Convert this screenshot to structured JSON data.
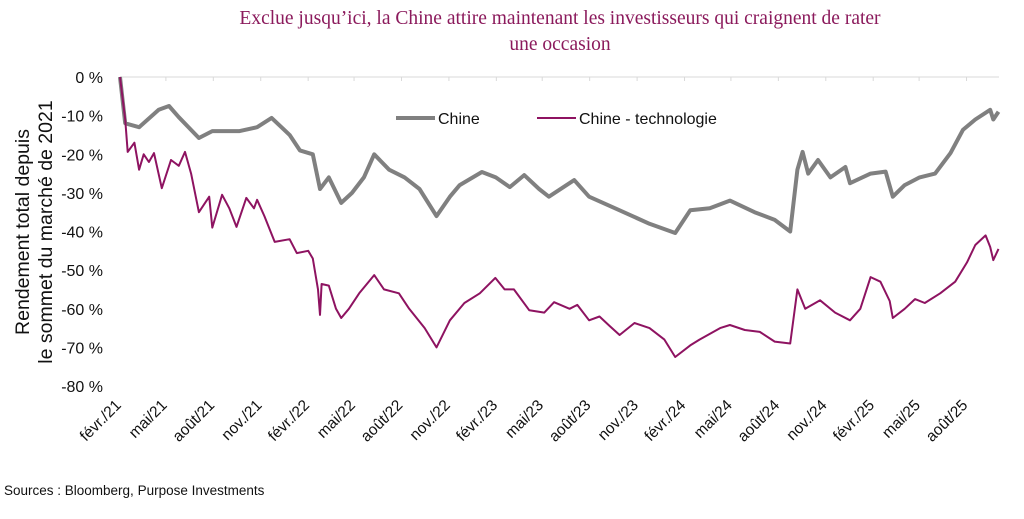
{
  "title_line1": "Exclue jusqu’ici, la Chine attire maintenant les investisseurs qui craignent de rater",
  "title_line2": "une occasion",
  "sources": "Sources : Bloomberg, Purpose Investments",
  "chart_data": {
    "type": "line",
    "title": "Exclue jusqu’ici, la Chine attire maintenant les investisseurs qui craignent de rater une occasion",
    "xlabel": "",
    "ylabel": "Rendement total depuis le sommet du marché de 2021",
    "ylabel_lines": [
      "Rendement total depuis",
      "le sommet du marché de 2021"
    ],
    "ylim": [
      -80,
      0
    ],
    "xlim": [
      "2021-02-01",
      "2025-10-03"
    ],
    "grid": false,
    "legend_position": "top-center",
    "y_ticks": [
      0,
      -10,
      -20,
      -30,
      -40,
      -50,
      -60,
      -70,
      -80
    ],
    "y_tick_labels": [
      "0 %",
      "-10 %",
      "-20 %",
      "-30 %",
      "-40 %",
      "-50 %",
      "-60 %",
      "-70 %",
      "-80 %"
    ],
    "x_ticks": [
      "2021-02-01",
      "2021-05-01",
      "2021-08-01",
      "2021-11-01",
      "2022-02-01",
      "2022-05-01",
      "2022-08-01",
      "2022-11-01",
      "2023-02-01",
      "2023-05-01",
      "2023-08-01",
      "2023-11-01",
      "2024-02-01",
      "2024-05-01",
      "2024-08-01",
      "2024-11-01",
      "2025-02-01",
      "2025-05-01",
      "2025-08-01"
    ],
    "x_tick_labels": [
      "févr./21",
      "mai/21",
      "août/21",
      "nov./21",
      "févr./22",
      "mai/22",
      "août/22",
      "nov./22",
      "févr./23",
      "mai/23",
      "août/23",
      "nov./23",
      "févr./24",
      "mai/24",
      "août/24",
      "nov./24",
      "févr./25",
      "mai/25",
      "août/25"
    ],
    "series": [
      {
        "name": "Chine",
        "color": "#808080",
        "points": [
          [
            "2021-02-01",
            0
          ],
          [
            "2021-02-11",
            -12
          ],
          [
            "2021-03-10",
            -13
          ],
          [
            "2021-04-17",
            -8.5
          ],
          [
            "2021-05-07",
            -7.5
          ],
          [
            "2021-05-26",
            -10.4
          ],
          [
            "2021-07-04",
            -15.8
          ],
          [
            "2021-07-30",
            -14
          ],
          [
            "2021-09-21",
            -14
          ],
          [
            "2021-10-25",
            -13
          ],
          [
            "2021-11-22",
            -10.6
          ],
          [
            "2021-12-27",
            -15
          ],
          [
            "2022-01-16",
            -19
          ],
          [
            "2022-02-10",
            -20
          ],
          [
            "2022-02-24",
            -29
          ],
          [
            "2022-03-13",
            -26
          ],
          [
            "2022-04-06",
            -32.6
          ],
          [
            "2022-04-27",
            -30
          ],
          [
            "2022-05-20",
            -26
          ],
          [
            "2022-06-09",
            -20
          ],
          [
            "2022-07-08",
            -24
          ],
          [
            "2022-08-07",
            -26
          ],
          [
            "2022-09-05",
            -29
          ],
          [
            "2022-10-08",
            -36
          ],
          [
            "2022-11-03",
            -31
          ],
          [
            "2022-11-22",
            -28
          ],
          [
            "2023-01-04",
            -24.6
          ],
          [
            "2023-01-31",
            -26
          ],
          [
            "2023-02-27",
            -28.5
          ],
          [
            "2023-03-27",
            -25.4
          ],
          [
            "2023-04-25",
            -29
          ],
          [
            "2023-05-14",
            -31
          ],
          [
            "2023-07-02",
            -26.7
          ],
          [
            "2023-07-31",
            -31
          ],
          [
            "2023-09-28",
            -34.5
          ],
          [
            "2023-11-25",
            -38
          ],
          [
            "2024-01-14",
            -40.4
          ],
          [
            "2024-02-12",
            -34.5
          ],
          [
            "2024-03-21",
            -34
          ],
          [
            "2024-04-29",
            -32
          ],
          [
            "2024-06-16",
            -35
          ],
          [
            "2024-07-25",
            -37
          ],
          [
            "2024-08-24",
            -40
          ],
          [
            "2024-09-07",
            -24
          ],
          [
            "2024-09-17",
            -19.4
          ],
          [
            "2024-09-28",
            -25
          ],
          [
            "2024-10-17",
            -21.5
          ],
          [
            "2024-11-10",
            -26
          ],
          [
            "2024-12-09",
            -23.3
          ],
          [
            "2024-12-18",
            -27.5
          ],
          [
            "2025-01-27",
            -25
          ],
          [
            "2025-02-25",
            -24.5
          ],
          [
            "2025-03-11",
            -31
          ],
          [
            "2025-04-03",
            -28
          ],
          [
            "2025-05-02",
            -26
          ],
          [
            "2025-06-01",
            -25
          ],
          [
            "2025-07-01",
            -19.7
          ],
          [
            "2025-07-25",
            -13.7
          ],
          [
            "2025-08-18",
            -11
          ],
          [
            "2025-09-16",
            -8.5
          ],
          [
            "2025-09-22",
            -11
          ],
          [
            "2025-10-02",
            -9
          ]
        ]
      },
      {
        "name": "Chine - technologie",
        "color": "#8E1361",
        "points": [
          [
            "2021-02-01",
            0
          ],
          [
            "2021-02-11",
            -11
          ],
          [
            "2021-02-16",
            -19.4
          ],
          [
            "2021-03-01",
            -17
          ],
          [
            "2021-03-10",
            -24
          ],
          [
            "2021-03-19",
            -20
          ],
          [
            "2021-03-29",
            -22
          ],
          [
            "2021-04-08",
            -19.7
          ],
          [
            "2021-04-23",
            -28.8
          ],
          [
            "2021-05-11",
            -21.5
          ],
          [
            "2021-05-26",
            -23
          ],
          [
            "2021-06-07",
            -19.4
          ],
          [
            "2021-06-19",
            -25
          ],
          [
            "2021-07-04",
            -35
          ],
          [
            "2021-07-24",
            -31
          ],
          [
            "2021-07-30",
            -39
          ],
          [
            "2021-08-18",
            -30.5
          ],
          [
            "2021-09-01",
            -34
          ],
          [
            "2021-09-15",
            -38.8
          ],
          [
            "2021-10-04",
            -31.3
          ],
          [
            "2021-10-19",
            -34
          ],
          [
            "2021-10-25",
            -31.8
          ],
          [
            "2021-11-08",
            -36
          ],
          [
            "2021-11-28",
            -42.7
          ],
          [
            "2021-12-27",
            -42
          ],
          [
            "2022-01-10",
            -45.6
          ],
          [
            "2022-02-01",
            -45
          ],
          [
            "2022-02-10",
            -47
          ],
          [
            "2022-02-20",
            -55
          ],
          [
            "2022-02-24",
            -61.6
          ],
          [
            "2022-02-27",
            -53.6
          ],
          [
            "2022-03-13",
            -54
          ],
          [
            "2022-03-27",
            -60
          ],
          [
            "2022-04-06",
            -62.4
          ],
          [
            "2022-04-21",
            -60
          ],
          [
            "2022-05-11",
            -56
          ],
          [
            "2022-06-09",
            -51.3
          ],
          [
            "2022-06-28",
            -55
          ],
          [
            "2022-07-27",
            -56
          ],
          [
            "2022-08-16",
            -60
          ],
          [
            "2022-09-15",
            -65
          ],
          [
            "2022-10-08",
            -70
          ],
          [
            "2022-11-03",
            -63
          ],
          [
            "2022-12-01",
            -58.5
          ],
          [
            "2022-12-31",
            -56
          ],
          [
            "2023-01-30",
            -52
          ],
          [
            "2023-02-17",
            -55
          ],
          [
            "2023-03-07",
            -55
          ],
          [
            "2023-04-06",
            -60.4
          ],
          [
            "2023-05-05",
            -61
          ],
          [
            "2023-05-24",
            -58.3
          ],
          [
            "2023-06-23",
            -60
          ],
          [
            "2023-07-08",
            -59
          ],
          [
            "2023-07-31",
            -63
          ],
          [
            "2023-08-20",
            -62
          ],
          [
            "2023-09-09",
            -64.5
          ],
          [
            "2023-09-28",
            -66.8
          ],
          [
            "2023-10-27",
            -63.7
          ],
          [
            "2023-11-25",
            -65
          ],
          [
            "2023-12-24",
            -68
          ],
          [
            "2024-01-14",
            -72.5
          ],
          [
            "2024-02-12",
            -69.5
          ],
          [
            "2024-03-01",
            -68
          ],
          [
            "2024-04-10",
            -65
          ],
          [
            "2024-04-29",
            -64.2
          ],
          [
            "2024-05-28",
            -65.5
          ],
          [
            "2024-06-26",
            -66
          ],
          [
            "2024-07-25",
            -68.5
          ],
          [
            "2024-08-24",
            -69
          ],
          [
            "2024-09-07",
            -55
          ],
          [
            "2024-09-22",
            -60
          ],
          [
            "2024-10-21",
            -57.8
          ],
          [
            "2024-11-19",
            -61
          ],
          [
            "2024-12-18",
            -63
          ],
          [
            "2025-01-07",
            -60
          ],
          [
            "2025-01-27",
            -51.8
          ],
          [
            "2025-02-15",
            -53
          ],
          [
            "2025-03-05",
            -58
          ],
          [
            "2025-03-11",
            -62.4
          ],
          [
            "2025-04-03",
            -60
          ],
          [
            "2025-04-23",
            -57.5
          ],
          [
            "2025-05-12",
            -58.5
          ],
          [
            "2025-06-11",
            -56
          ],
          [
            "2025-07-10",
            -53
          ],
          [
            "2025-08-02",
            -48
          ],
          [
            "2025-08-18",
            -43.5
          ],
          [
            "2025-09-07",
            -41
          ],
          [
            "2025-09-16",
            -44
          ],
          [
            "2025-09-22",
            -47.4
          ],
          [
            "2025-10-02",
            -44.5
          ]
        ]
      }
    ]
  }
}
